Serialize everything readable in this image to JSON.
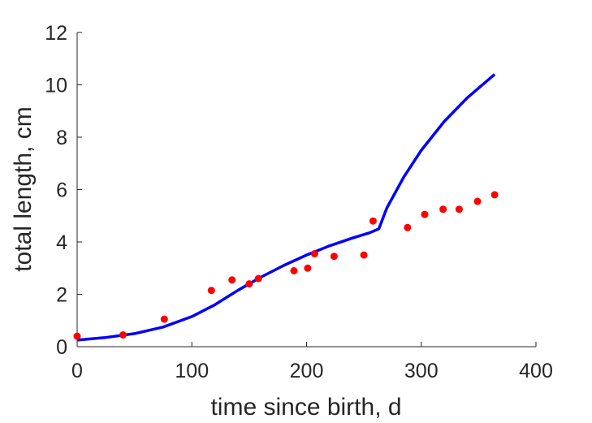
{
  "chart_data": {
    "type": "scatter",
    "xlabel": "time since birth, d",
    "ylabel": "total length, cm",
    "xlim": [
      0,
      400
    ],
    "ylim": [
      0,
      12
    ],
    "x_ticks": [
      0,
      100,
      200,
      300,
      400
    ],
    "y_ticks": [
      0,
      2,
      4,
      6,
      8,
      10,
      12
    ],
    "grid": false,
    "legend": "none",
    "series": [
      {
        "kind": "points",
        "color": "#ff0000",
        "x": [
          0,
          40,
          76,
          117,
          135,
          150,
          158,
          189,
          201,
          207,
          224,
          250,
          258,
          288,
          303,
          319,
          333,
          349,
          364
        ],
        "y": [
          0.4,
          0.45,
          1.05,
          2.15,
          2.55,
          2.4,
          2.6,
          2.9,
          3.0,
          3.55,
          3.45,
          3.5,
          4.8,
          4.55,
          5.05,
          5.25,
          5.25,
          5.55,
          5.8
        ]
      },
      {
        "kind": "line",
        "color": "#0000ff",
        "x": [
          0,
          25,
          50,
          75,
          100,
          120,
          140,
          160,
          180,
          200,
          220,
          240,
          255,
          263,
          270,
          285,
          300,
          320,
          340,
          364
        ],
        "y": [
          0.25,
          0.35,
          0.5,
          0.75,
          1.15,
          1.6,
          2.15,
          2.65,
          3.1,
          3.5,
          3.85,
          4.15,
          4.35,
          4.5,
          5.3,
          6.5,
          7.5,
          8.6,
          9.5,
          10.4
        ]
      }
    ]
  }
}
